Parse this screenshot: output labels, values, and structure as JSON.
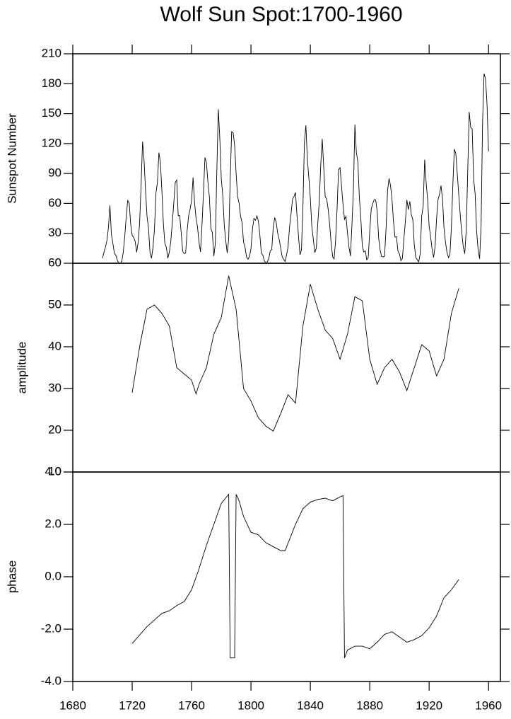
{
  "chart_data": [
    {
      "type": "line",
      "title": "Wolf Sun Spot:1700-1960",
      "y_label": "Sunspot Number",
      "xlim": [
        1680,
        1968
      ],
      "ylim": [
        0,
        210
      ],
      "yticks": [
        30,
        60,
        90,
        120,
        150,
        180,
        210
      ],
      "x": [
        1700,
        1701,
        1702,
        1703,
        1704,
        1705,
        1706,
        1707,
        1708,
        1709,
        1710,
        1711,
        1712,
        1713,
        1714,
        1715,
        1716,
        1717,
        1718,
        1719,
        1720,
        1721,
        1722,
        1723,
        1724,
        1725,
        1726,
        1727,
        1728,
        1729,
        1730,
        1731,
        1732,
        1733,
        1734,
        1735,
        1736,
        1737,
        1738,
        1739,
        1740,
        1741,
        1742,
        1743,
        1744,
        1745,
        1746,
        1747,
        1748,
        1749,
        1750,
        1751,
        1752,
        1753,
        1754,
        1755,
        1756,
        1757,
        1758,
        1759,
        1760,
        1761,
        1762,
        1763,
        1764,
        1765,
        1766,
        1767,
        1768,
        1769,
        1770,
        1771,
        1772,
        1773,
        1774,
        1775,
        1776,
        1777,
        1778,
        1779,
        1780,
        1781,
        1782,
        1783,
        1784,
        1785,
        1786,
        1787,
        1788,
        1789,
        1790,
        1791,
        1792,
        1793,
        1794,
        1795,
        1796,
        1797,
        1798,
        1799,
        1800,
        1801,
        1802,
        1803,
        1804,
        1805,
        1806,
        1807,
        1808,
        1809,
        1810,
        1811,
        1812,
        1813,
        1814,
        1815,
        1816,
        1817,
        1818,
        1819,
        1820,
        1821,
        1822,
        1823,
        1824,
        1825,
        1826,
        1827,
        1828,
        1829,
        1830,
        1831,
        1832,
        1833,
        1834,
        1835,
        1836,
        1837,
        1838,
        1839,
        1840,
        1841,
        1842,
        1843,
        1844,
        1845,
        1846,
        1847,
        1848,
        1849,
        1850,
        1851,
        1852,
        1853,
        1854,
        1855,
        1856,
        1857,
        1858,
        1859,
        1860,
        1861,
        1862,
        1863,
        1864,
        1865,
        1866,
        1867,
        1868,
        1869,
        1870,
        1871,
        1872,
        1873,
        1874,
        1875,
        1876,
        1877,
        1878,
        1879,
        1880,
        1881,
        1882,
        1883,
        1884,
        1885,
        1886,
        1887,
        1888,
        1889,
        1890,
        1891,
        1892,
        1893,
        1894,
        1895,
        1896,
        1897,
        1898,
        1899,
        1900,
        1901,
        1902,
        1903,
        1904,
        1905,
        1906,
        1907,
        1908,
        1909,
        1910,
        1911,
        1912,
        1913,
        1914,
        1915,
        1916,
        1917,
        1918,
        1919,
        1920,
        1921,
        1922,
        1923,
        1924,
        1925,
        1926,
        1927,
        1928,
        1929,
        1930,
        1931,
        1932,
        1933,
        1934,
        1935,
        1936,
        1937,
        1938,
        1939,
        1940,
        1941,
        1942,
        1943,
        1944,
        1945,
        1946,
        1947,
        1948,
        1949,
        1950,
        1951,
        1952,
        1953,
        1954,
        1955,
        1956,
        1957,
        1958,
        1959,
        1960
      ],
      "values": [
        5,
        11,
        16,
        23,
        36,
        58,
        29,
        20,
        10,
        8,
        3,
        0,
        0,
        2,
        11,
        27,
        47,
        63,
        60,
        39,
        28,
        26,
        22,
        11,
        21,
        40,
        78,
        122,
        103,
        73,
        47,
        35,
        11,
        5,
        16,
        34,
        70,
        81,
        111,
        101,
        73,
        40,
        20,
        16,
        5,
        11,
        22,
        40,
        60,
        80.9,
        83.4,
        47.7,
        47.8,
        30.7,
        12.2,
        9.6,
        10.2,
        32.4,
        47.6,
        54.0,
        62.9,
        85.9,
        61.2,
        45.1,
        36.4,
        20.9,
        11.4,
        37.8,
        69.8,
        106.1,
        100.8,
        81.6,
        66.5,
        34.8,
        30.6,
        7.0,
        19.8,
        92.5,
        154.4,
        125.9,
        84.8,
        68.1,
        38.5,
        22.8,
        10.2,
        24.1,
        82.9,
        132.0,
        130.9,
        118.1,
        89.9,
        66.6,
        60.0,
        46.9,
        41.0,
        21.3,
        16.0,
        6.4,
        4.1,
        6.8,
        14.5,
        34.0,
        45.0,
        43.1,
        47.5,
        42.2,
        28.1,
        10.1,
        8.1,
        2.5,
        0.0,
        1.4,
        5.0,
        12.2,
        13.9,
        35.4,
        45.8,
        41.1,
        30.1,
        23.9,
        15.6,
        6.6,
        4.0,
        1.8,
        8.5,
        16.6,
        36.3,
        49.6,
        64.2,
        67.0,
        70.9,
        47.8,
        27.5,
        8.5,
        13.2,
        56.9,
        121.5,
        138.3,
        103.2,
        85.7,
        64.6,
        36.7,
        24.2,
        10.7,
        15.0,
        40.1,
        61.5,
        98.5,
        124.7,
        96.3,
        66.6,
        64.5,
        54.1,
        39.0,
        20.6,
        6.7,
        4.3,
        22.7,
        54.8,
        93.8,
        95.8,
        77.2,
        59.1,
        44.0,
        47.0,
        30.5,
        16.3,
        7.3,
        37.6,
        74.0,
        139.0,
        111.2,
        101.6,
        66.2,
        44.7,
        17.0,
        11.3,
        12.4,
        3.4,
        6.0,
        32.3,
        54.3,
        59.7,
        63.7,
        63.5,
        52.2,
        25.4,
        13.1,
        6.8,
        6.3,
        7.1,
        35.6,
        73.0,
        85.1,
        78.0,
        64.0,
        41.8,
        26.2,
        26.7,
        12.1,
        9.5,
        2.7,
        5.0,
        24.4,
        42.0,
        63.5,
        53.8,
        62.0,
        48.5,
        43.9,
        18.6,
        5.7,
        3.6,
        1.4,
        9.6,
        47.4,
        57.1,
        103.9,
        80.6,
        63.6,
        37.6,
        26.1,
        14.2,
        5.8,
        16.7,
        44.3,
        63.9,
        69.0,
        77.8,
        64.9,
        35.7,
        21.2,
        11.1,
        5.7,
        8.7,
        36.1,
        79.7,
        114.4,
        109.6,
        88.8,
        67.8,
        47.5,
        30.6,
        16.3,
        9.6,
        33.2,
        92.6,
        151.6,
        136.3,
        134.7,
        83.9,
        69.4,
        31.5,
        13.9,
        4.4,
        38.0,
        141.7,
        190.2,
        184.8,
        159.0,
        112.3
      ]
    },
    {
      "type": "line",
      "y_label": "amplitude",
      "xlim": [
        1680,
        1968
      ],
      "ylim": [
        10,
        60
      ],
      "yticks": [
        10,
        20,
        30,
        40,
        50,
        60
      ],
      "x": [
        1720,
        1725,
        1730,
        1735,
        1740,
        1745,
        1750,
        1755,
        1760,
        1763,
        1765,
        1770,
        1775,
        1780,
        1785,
        1790,
        1795,
        1800,
        1805,
        1810,
        1815,
        1820,
        1825,
        1830,
        1835,
        1840,
        1845,
        1850,
        1855,
        1860,
        1865,
        1870,
        1875,
        1880,
        1885,
        1890,
        1895,
        1900,
        1905,
        1910,
        1915,
        1920,
        1925,
        1930,
        1935,
        1940
      ],
      "values": [
        29,
        40,
        49,
        50,
        48,
        45,
        35,
        33.5,
        32,
        28.7,
        31,
        35,
        43,
        47,
        57,
        49,
        30,
        27,
        23,
        21,
        19.8,
        24,
        28.5,
        26.5,
        45,
        55,
        49,
        44,
        42,
        37,
        43,
        52,
        51,
        37,
        31,
        35,
        37,
        34,
        29.5,
        35,
        40.5,
        39,
        33,
        37,
        48,
        54
      ]
    },
    {
      "type": "line",
      "y_label": "phase",
      "xlim": [
        1680,
        1968
      ],
      "ylim": [
        -4,
        4
      ],
      "yticks": [
        {
          "value": -4,
          "label": "-4.0"
        },
        {
          "value": -2,
          "label": "-2.0"
        },
        {
          "value": 0,
          "label": "0.0"
        },
        {
          "value": 2,
          "label": "2.0"
        },
        {
          "value": 4,
          "label": "4.0"
        }
      ],
      "xticks": [
        1680,
        1720,
        1760,
        1800,
        1840,
        1880,
        1920,
        1960
      ],
      "x": [
        1720,
        1730,
        1740,
        1745,
        1750,
        1755,
        1760,
        1765,
        1770,
        1775,
        1780,
        1785,
        1786,
        1789,
        1790,
        1792,
        1795,
        1800,
        1805,
        1810,
        1815,
        1820,
        1823,
        1830,
        1835,
        1840,
        1845,
        1850,
        1855,
        1860,
        1862,
        1863,
        1865,
        1870,
        1875,
        1880,
        1885,
        1890,
        1895,
        1900,
        1905,
        1910,
        1915,
        1920,
        1925,
        1930,
        1935,
        1940
      ],
      "values": [
        -2.55,
        -1.9,
        -1.4,
        -1.3,
        -1.1,
        -0.95,
        -0.5,
        0.3,
        1.2,
        2.0,
        2.8,
        3.15,
        -3.1,
        -3.1,
        3.15,
        2.9,
        2.3,
        1.7,
        1.6,
        1.3,
        1.15,
        1.0,
        1.0,
        2.0,
        2.6,
        2.85,
        2.95,
        3.0,
        2.9,
        3.05,
        3.1,
        -3.1,
        -2.8,
        -2.65,
        -2.65,
        -2.75,
        -2.5,
        -2.2,
        -2.1,
        -2.3,
        -2.5,
        -2.4,
        -2.25,
        -1.95,
        -1.5,
        -0.8,
        -0.5,
        -0.1
      ]
    }
  ]
}
